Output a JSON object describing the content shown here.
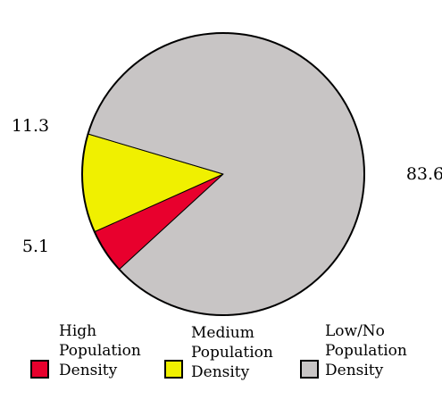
{
  "chart_data": {
    "type": "pie",
    "title": "",
    "slices": [
      {
        "label": "High Population Density",
        "value": 5.1,
        "value_label": "5.1",
        "color": "#e8002d"
      },
      {
        "label": "Medium Population Density",
        "value": 11.3,
        "value_label": "11.3",
        "color": "#f0f000"
      },
      {
        "label": "Low/No Population Density",
        "value": 83.6,
        "value_label": "83.6",
        "color": "#c8c5c5"
      }
    ],
    "legend": {
      "placement": "bottom",
      "items": [
        {
          "label": "High\nPopulation\nDensity",
          "color": "#e8002d"
        },
        {
          "label": "Medium\nPopulation\nDensity",
          "color": "#f0f000"
        },
        {
          "label": "Low/No\nPopulation\nDensity",
          "color": "#c8c5c5"
        }
      ]
    }
  }
}
